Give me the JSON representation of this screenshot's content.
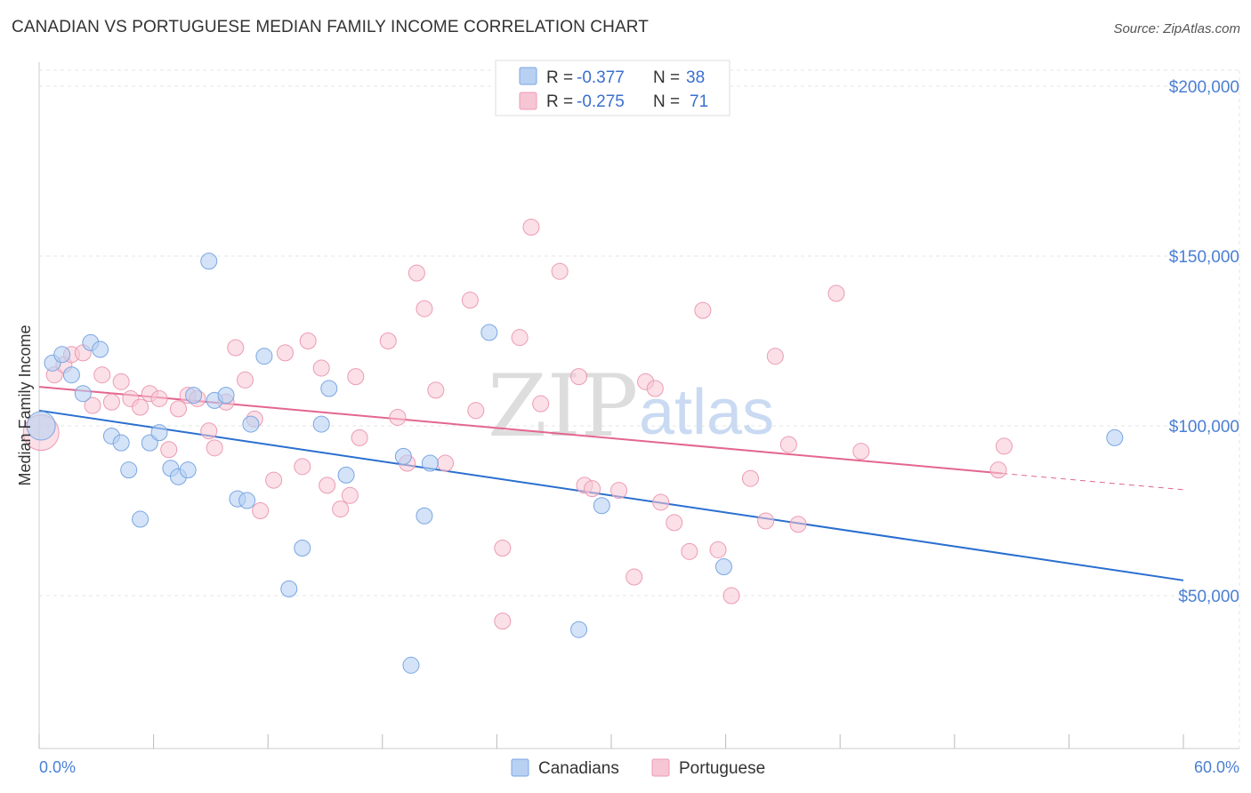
{
  "title": "CANADIAN VS PORTUGUESE MEDIAN FAMILY INCOME CORRELATION CHART",
  "source": "Source: ZipAtlas.com",
  "watermark": {
    "zip": "ZIP",
    "atlas": "atlas"
  },
  "legend": {
    "rows": [
      {
        "r_label": "R =",
        "r_value": "-0.377",
        "n_label": "N =",
        "n_value": "38"
      },
      {
        "r_label": "R =",
        "r_value": "-0.275",
        "n_label": "N =",
        "n_value": "71"
      }
    ]
  },
  "bottom_legend": [
    "Canadians",
    "Portuguese"
  ],
  "chart_data": {
    "type": "scatter",
    "ylabel": "Median Family Income",
    "xlabel": "",
    "x_tick_labels": [
      "0.0%",
      "60.0%"
    ],
    "y_tick_labels": [
      "$50,000",
      "$100,000",
      "$150,000",
      "$200,000"
    ],
    "xlim": [
      0,
      60
    ],
    "ylim": [
      5000,
      215000
    ],
    "grid": true,
    "legend_placement": "top-center",
    "colors": {
      "canadians_fill": "#b8d0f2",
      "canadians_stroke": "#7aa6e3",
      "canadians_line": "#2a6fcf",
      "portuguese_fill": "#f7c6d4",
      "portuguese_stroke": "#ec9bb4",
      "portuguese_line": "#e3668f"
    },
    "series": [
      {
        "name": "Canadians",
        "r": -0.377,
        "n": 38,
        "trend": {
          "x0": 0,
          "y0": 104500,
          "x1": 60,
          "y1": 54500
        },
        "points": [
          [
            0.1,
            100000,
            16
          ],
          [
            0.7,
            118500,
            9
          ],
          [
            1.2,
            121000,
            9
          ],
          [
            1.7,
            115000,
            9
          ],
          [
            2.3,
            109500,
            9
          ],
          [
            2.7,
            124500,
            9
          ],
          [
            3.2,
            122500,
            9
          ],
          [
            3.8,
            97000,
            9
          ],
          [
            4.3,
            95000,
            9
          ],
          [
            4.7,
            87000,
            9
          ],
          [
            5.3,
            72500,
            9
          ],
          [
            5.8,
            95000,
            9
          ],
          [
            6.3,
            98000,
            9
          ],
          [
            6.9,
            87500,
            9
          ],
          [
            7.3,
            85000,
            9
          ],
          [
            7.8,
            87000,
            9
          ],
          [
            8.1,
            109000,
            9
          ],
          [
            8.9,
            148500,
            9
          ],
          [
            9.2,
            107500,
            9
          ],
          [
            9.8,
            109000,
            9
          ],
          [
            10.4,
            78500,
            9
          ],
          [
            10.9,
            78000,
            9
          ],
          [
            11.1,
            100500,
            9
          ],
          [
            11.8,
            120500,
            9
          ],
          [
            13.1,
            52000,
            9
          ],
          [
            13.8,
            64000,
            9
          ],
          [
            14.8,
            100500,
            9
          ],
          [
            15.2,
            111000,
            9
          ],
          [
            16.1,
            85500,
            9
          ],
          [
            19.1,
            91000,
            9
          ],
          [
            19.5,
            29500,
            9
          ],
          [
            20.2,
            73500,
            9
          ],
          [
            20.5,
            89000,
            9
          ],
          [
            23.6,
            127500,
            9
          ],
          [
            28.3,
            40000,
            9
          ],
          [
            29.5,
            76500,
            9
          ],
          [
            35.9,
            58500,
            9
          ],
          [
            56.4,
            96500,
            9
          ]
        ]
      },
      {
        "name": "Portuguese",
        "r": -0.275,
        "n": 71,
        "trend": {
          "x0": 0,
          "y0": 111500,
          "x1": 50.5,
          "y1": 86000
        },
        "trend_dashed": {
          "x0": 50.5,
          "y0": 86000,
          "x1": 60,
          "y1": 81200
        },
        "points": [
          [
            0.1,
            98000,
            20
          ],
          [
            0.8,
            115000,
            9
          ],
          [
            1.3,
            118000,
            9
          ],
          [
            1.7,
            121000,
            9
          ],
          [
            2.3,
            121500,
            9
          ],
          [
            2.8,
            106000,
            9
          ],
          [
            3.3,
            115000,
            9
          ],
          [
            3.8,
            107000,
            9
          ],
          [
            4.3,
            113000,
            9
          ],
          [
            4.8,
            108000,
            9
          ],
          [
            5.3,
            105500,
            9
          ],
          [
            5.8,
            109500,
            9
          ],
          [
            6.3,
            108000,
            9
          ],
          [
            6.8,
            93000,
            9
          ],
          [
            7.3,
            105000,
            9
          ],
          [
            7.8,
            109000,
            9
          ],
          [
            8.3,
            108000,
            9
          ],
          [
            8.9,
            98500,
            9
          ],
          [
            9.2,
            93500,
            9
          ],
          [
            9.8,
            107000,
            9
          ],
          [
            10.3,
            123000,
            9
          ],
          [
            10.8,
            113500,
            9
          ],
          [
            11.3,
            102000,
            9
          ],
          [
            11.6,
            75000,
            9
          ],
          [
            12.3,
            84000,
            9
          ],
          [
            12.9,
            121500,
            9
          ],
          [
            13.8,
            88000,
            9
          ],
          [
            14.1,
            125000,
            9
          ],
          [
            14.8,
            117000,
            9
          ],
          [
            15.1,
            82500,
            9
          ],
          [
            15.8,
            75500,
            9
          ],
          [
            16.3,
            79500,
            9
          ],
          [
            16.6,
            114500,
            9
          ],
          [
            16.8,
            96500,
            9
          ],
          [
            18.3,
            125000,
            9
          ],
          [
            18.8,
            102500,
            9
          ],
          [
            19.3,
            89000,
            9
          ],
          [
            19.8,
            145000,
            9
          ],
          [
            20.2,
            134500,
            9
          ],
          [
            20.8,
            110500,
            9
          ],
          [
            21.3,
            89000,
            9
          ],
          [
            22.6,
            137000,
            9
          ],
          [
            22.9,
            104500,
            9
          ],
          [
            24.3,
            64000,
            9
          ],
          [
            24.3,
            42500,
            9
          ],
          [
            25.2,
            126000,
            9
          ],
          [
            25.8,
            158500,
            9
          ],
          [
            26.3,
            106500,
            9
          ],
          [
            27.3,
            145500,
            9
          ],
          [
            28.3,
            114500,
            9
          ],
          [
            28.6,
            82500,
            9
          ],
          [
            29.0,
            81500,
            9
          ],
          [
            30.4,
            81000,
            9
          ],
          [
            31.2,
            55500,
            9
          ],
          [
            31.8,
            113000,
            9
          ],
          [
            32.3,
            111000,
            9
          ],
          [
            32.6,
            77500,
            9
          ],
          [
            33.3,
            71500,
            9
          ],
          [
            34.1,
            63000,
            9
          ],
          [
            34.8,
            134000,
            9
          ],
          [
            35.6,
            63500,
            9
          ],
          [
            36.3,
            50000,
            9
          ],
          [
            37.3,
            84500,
            9
          ],
          [
            38.1,
            72000,
            9
          ],
          [
            38.6,
            120500,
            9
          ],
          [
            39.3,
            94500,
            9
          ],
          [
            39.8,
            71000,
            9
          ],
          [
            41.8,
            139000,
            9
          ],
          [
            43.1,
            92500,
            9
          ],
          [
            50.3,
            87000,
            9
          ],
          [
            50.6,
            94000,
            9
          ]
        ]
      }
    ]
  }
}
